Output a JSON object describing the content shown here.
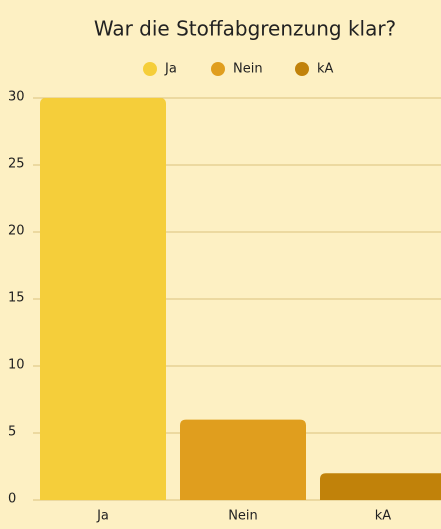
{
  "chart_data": {
    "type": "bar",
    "title": "War die Stoffabgrenzung klar?",
    "categories": [
      "Ja",
      "Nein",
      "kA"
    ],
    "values": [
      30,
      6,
      2
    ],
    "colors": [
      "#f5ce3a",
      "#e09e1e",
      "#c1820a"
    ],
    "ylim": [
      0,
      30
    ],
    "yticks": [
      0,
      5,
      10,
      15,
      20,
      25,
      30
    ],
    "grid": true
  }
}
